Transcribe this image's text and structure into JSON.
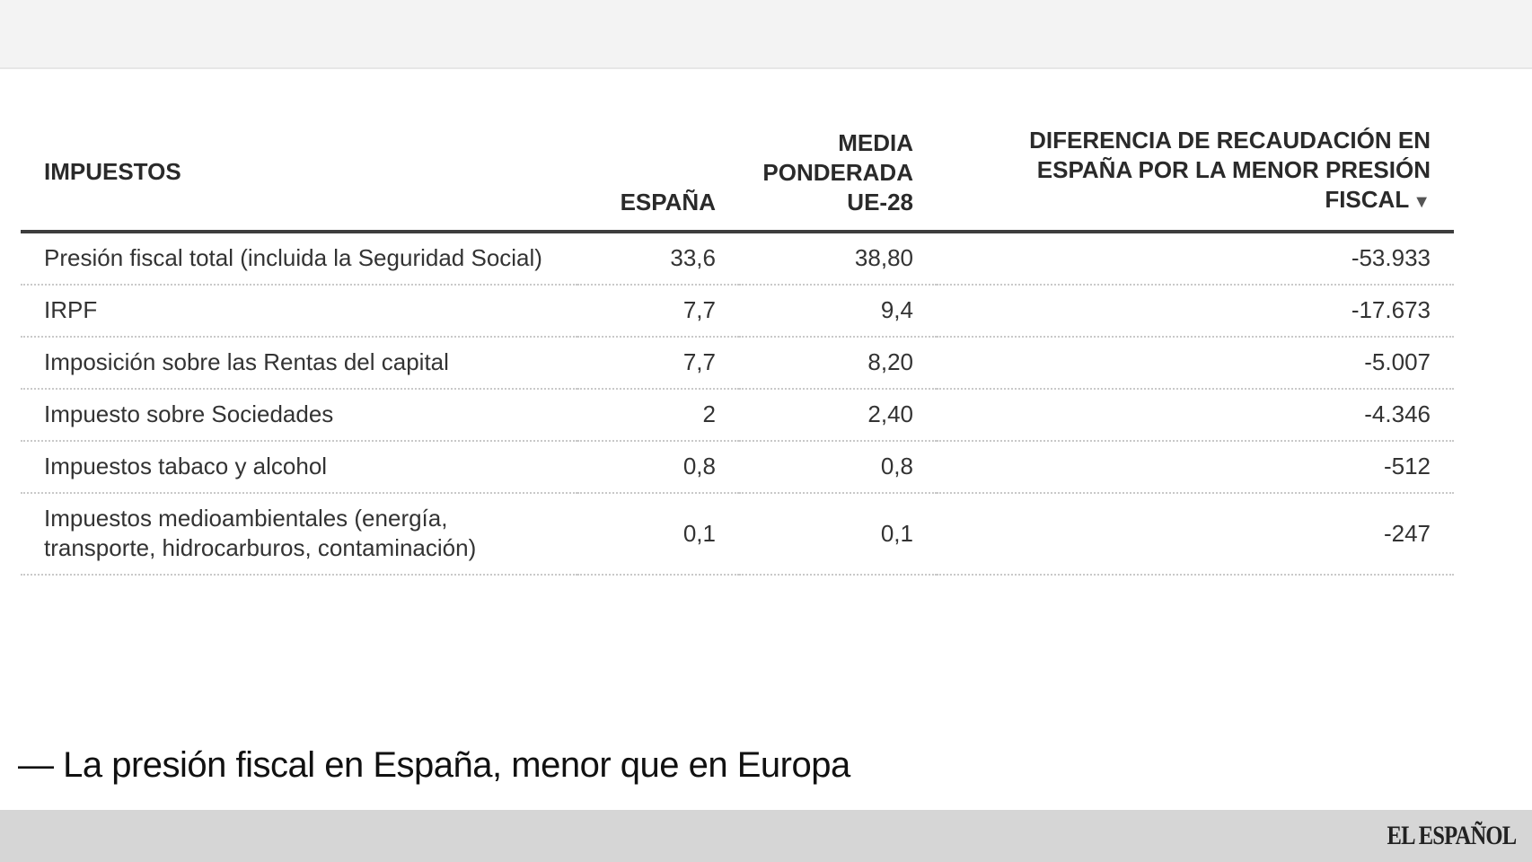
{
  "chart_data": {
    "type": "table",
    "columns": [
      "IMPUESTOS",
      "ESPAÑA",
      "MEDIA PONDERADA UE-28",
      "DIFERENCIA DE RECAUDACIÓN EN ESPAÑA POR LA MENOR PRESIÓN FISCAL"
    ],
    "sort_indicator": "▼",
    "sort_column": 3,
    "sort_direction": "descending",
    "rows": [
      [
        "Presión fiscal total (incluida la Seguridad Social)",
        "33,6",
        "38,80",
        "-53.933"
      ],
      [
        "IRPF",
        "7,7",
        "9,4",
        "-17.673"
      ],
      [
        "Imposición sobre las Rentas del capital",
        "7,7",
        "8,20",
        "-5.007"
      ],
      [
        "Impuesto sobre Sociedades",
        "2",
        "2,40",
        "-4.346"
      ],
      [
        "Impuestos tabaco y alcohol",
        "0,8",
        "0,8",
        "-512"
      ],
      [
        "Impuestos medioambientales (energía, transporte, hidrocarburos, contaminación)",
        "0,1",
        "0,1",
        "-247"
      ]
    ]
  },
  "footer": {
    "title": "— La presión fiscal en España, menor que en Europa",
    "logo_text": "EL ESPAÑOL"
  },
  "colors": {
    "page_background": "#f1f1f1",
    "panel_background": "#ffffff",
    "header_rule": "#3d3d3d",
    "row_divider": "#c9c9c9",
    "bottom_bar": "#d6d6d6"
  }
}
